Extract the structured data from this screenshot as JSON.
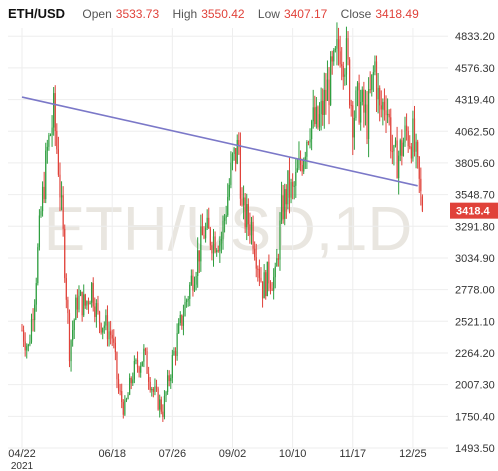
{
  "header": {
    "symbol": "ETH/USD",
    "open_label": "Open",
    "open": "3533.73",
    "high_label": "High",
    "high": "3550.42",
    "low_label": "Low",
    "low": "3407.17",
    "close_label": "Close",
    "close": "3418.49"
  },
  "watermark": "ETH/USD,1D",
  "last_price_tag": "3418.4",
  "colors": {
    "up": "#2e9e3f",
    "down": "#e0423a",
    "trendline": "#7b78c8",
    "grid": "#eeeeee",
    "tag_bg": "#e0423a",
    "watermark": "#e9e6e0"
  },
  "chart_data": {
    "type": "candlestick",
    "x_ticks": [
      "04/22",
      "06/18",
      "07/26",
      "09/02",
      "10/10",
      "11/17",
      "12/25"
    ],
    "x_year": "2021",
    "y_ticks": [
      "4833.20",
      "4576.30",
      "4319.40",
      "4062.50",
      "3805.60",
      "3548.70",
      "3291.80",
      "3034.90",
      "2778.00",
      "2521.10",
      "2264.20",
      "2007.30",
      "1750.40",
      "1493.50"
    ],
    "ylim": [
      1493.5,
      4900
    ],
    "trendline": {
      "start": [
        "04/22",
        4340
      ],
      "end": [
        "12/28",
        3620
      ]
    },
    "anchors": [
      [
        "04/22",
        2450
      ],
      [
        "04/26",
        2300
      ],
      [
        "04/30",
        2750
      ],
      [
        "05/04",
        3400
      ],
      [
        "05/08",
        3900
      ],
      [
        "05/12",
        4200
      ],
      [
        "05/15",
        3800
      ],
      [
        "05/19",
        3000
      ],
      [
        "05/22",
        2300
      ],
      [
        "05/27",
        2700
      ],
      [
        "06/01",
        2650
      ],
      [
        "06/05",
        2800
      ],
      [
        "06/09",
        2550
      ],
      [
        "06/13",
        2500
      ],
      [
        "06/18",
        2400
      ],
      [
        "06/22",
        1950
      ],
      [
        "06/26",
        1800
      ],
      [
        "07/01",
        2100
      ],
      [
        "07/08",
        2250
      ],
      [
        "07/14",
        1950
      ],
      [
        "07/20",
        1800
      ],
      [
        "07/26",
        2200
      ],
      [
        "08/02",
        2600
      ],
      [
        "08/10",
        3000
      ],
      [
        "08/15",
        3250
      ],
      [
        "08/20",
        3200
      ],
      [
        "08/26",
        3200
      ],
      [
        "09/02",
        3800
      ],
      [
        "09/06",
        3950
      ],
      [
        "09/08",
        3400
      ],
      [
        "09/14",
        3300
      ],
      [
        "09/21",
        2800
      ],
      [
        "09/25",
        2900
      ],
      [
        "09/29",
        2850
      ],
      [
        "10/03",
        3400
      ],
      [
        "10/07",
        3600
      ],
      [
        "10/10",
        3550
      ],
      [
        "10/15",
        3800
      ],
      [
        "10/21",
        4150
      ],
      [
        "10/26",
        4100
      ],
      [
        "11/01",
        4400
      ],
      [
        "11/05",
        4550
      ],
      [
        "11/09",
        4780
      ],
      [
        "11/13",
        4650
      ],
      [
        "11/17",
        4200
      ],
      [
        "11/21",
        4300
      ],
      [
        "11/26",
        4150
      ],
      [
        "12/01",
        4600
      ],
      [
        "12/04",
        4200
      ],
      [
        "12/08",
        4350
      ],
      [
        "12/13",
        3800
      ],
      [
        "12/17",
        3900
      ],
      [
        "12/21",
        4050
      ],
      [
        "12/25",
        4000
      ],
      [
        "12/29",
        3620
      ],
      [
        "12/31",
        3418.49
      ]
    ]
  }
}
